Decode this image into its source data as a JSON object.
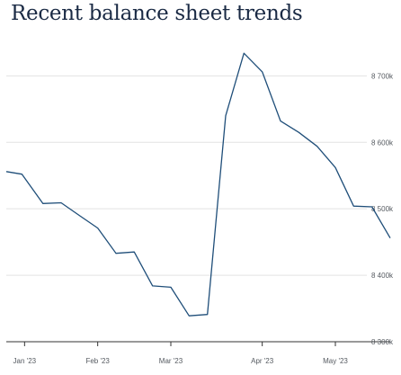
{
  "chart_data": {
    "type": "line",
    "title": "Recent balance sheet trends",
    "xlabel": "",
    "ylabel": "",
    "x_tick_labels": [
      "Jan '23",
      "Feb '23",
      "Mar '23",
      "Apr '23",
      "May '23"
    ],
    "x_tick_dates": [
      "2023-01-04",
      "2023-02-01",
      "2023-03-01",
      "2023-04-05",
      "2023-05-03"
    ],
    "y_tick_values": [
      8300,
      8400,
      8500,
      8600,
      8700
    ],
    "y_tick_labels": [
      "8 300k",
      "8 400k",
      "8 500k",
      "8 600k",
      "8 700k"
    ],
    "ylim": [
      8300,
      8760
    ],
    "xlim": [
      "2022-12-28",
      "2023-05-24"
    ],
    "grid": "horizontal",
    "color": "#1f4e79",
    "series": [
      {
        "x": [
          "2022-12-28",
          "2023-01-03",
          "2023-01-11",
          "2023-01-18",
          "2023-01-25",
          "2023-02-01",
          "2023-02-08",
          "2023-02-15",
          "2023-02-22",
          "2023-03-01",
          "2023-03-08",
          "2023-03-15",
          "2023-03-22",
          "2023-03-29",
          "2023-04-05",
          "2023-04-12",
          "2023-04-19",
          "2023-04-26",
          "2023-05-03",
          "2023-05-10",
          "2023-05-17",
          "2023-05-24"
        ],
        "values": [
          8556,
          8552,
          8508,
          8509,
          8490,
          8471,
          8433,
          8435,
          8384,
          8382,
          8339,
          8341,
          8640,
          8734,
          8706,
          8632,
          8615,
          8594,
          8562,
          8504,
          8503,
          8456
        ]
      }
    ]
  }
}
